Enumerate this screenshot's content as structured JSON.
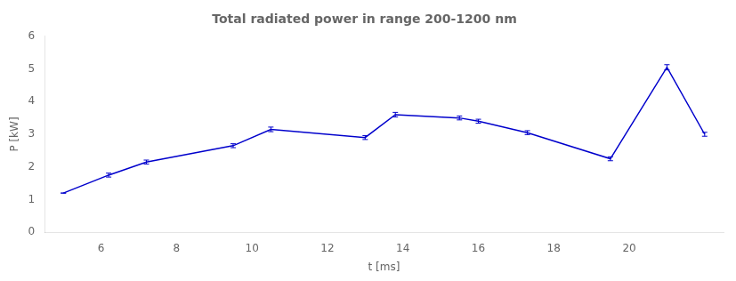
{
  "chart_data": {
    "type": "line",
    "title": "Total radiated power in range 200-1200 nm",
    "xlabel": "t [ms]",
    "ylabel": "P [kW]",
    "x": [
      5.0,
      6.2,
      7.2,
      9.5,
      10.5,
      13.0,
      13.8,
      15.5,
      16.0,
      17.3,
      19.5,
      21.0,
      22.0
    ],
    "values": [
      1.2,
      1.75,
      2.15,
      2.65,
      3.15,
      2.9,
      3.6,
      3.5,
      3.4,
      3.05,
      2.25,
      5.05,
      3.0
    ],
    "yerr": [
      0.0,
      0.06,
      0.06,
      0.06,
      0.07,
      0.06,
      0.07,
      0.06,
      0.06,
      0.06,
      0.06,
      0.08,
      0.06
    ],
    "xlim": [
      4.5,
      22.5
    ],
    "ylim": [
      0,
      6
    ],
    "xticks": [
      6,
      8,
      10,
      12,
      14,
      16,
      18,
      20
    ],
    "yticks": [
      0,
      1,
      2,
      3,
      4,
      5,
      6
    ],
    "color": "#0000cc",
    "grid": false
  }
}
